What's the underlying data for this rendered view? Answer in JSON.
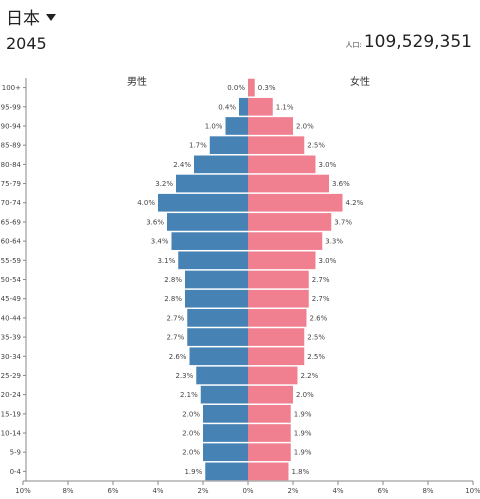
{
  "header": {
    "country": "日本",
    "year": "2045",
    "population_label": "人口:",
    "population_value": "109,529,351"
  },
  "chart_data": {
    "type": "bar",
    "title": "",
    "xlabel": "",
    "ylabel": "",
    "categories": [
      "100+",
      "95-99",
      "90-94",
      "85-89",
      "80-84",
      "75-79",
      "70-74",
      "65-69",
      "60-64",
      "55-59",
      "50-54",
      "45-49",
      "40-44",
      "35-39",
      "30-34",
      "25-29",
      "20-24",
      "15-19",
      "10-14",
      "5-9",
      "0-4"
    ],
    "series": [
      {
        "name": "男性",
        "color": "#4682b4",
        "values": [
          0.0,
          0.4,
          1.0,
          1.7,
          2.4,
          3.2,
          4.0,
          3.6,
          3.4,
          3.1,
          2.8,
          2.8,
          2.7,
          2.7,
          2.6,
          2.3,
          2.1,
          2.0,
          2.0,
          2.0,
          1.9
        ],
        "labels": [
          "0.0%",
          "0.4%",
          "1.0%",
          "1.7%",
          "2.4%",
          "3.2%",
          "4.0%",
          "3.6%",
          "3.4%",
          "3.1%",
          "2.8%",
          "2.8%",
          "2.7%",
          "2.7%",
          "2.6%",
          "2.3%",
          "2.1%",
          "2.0%",
          "2.0%",
          "2.0%",
          "1.9%"
        ]
      },
      {
        "name": "女性",
        "color": "#f08090",
        "values": [
          0.3,
          1.1,
          2.0,
          2.5,
          3.0,
          3.6,
          4.2,
          3.7,
          3.3,
          3.0,
          2.7,
          2.7,
          2.6,
          2.5,
          2.5,
          2.2,
          2.0,
          1.9,
          1.9,
          1.9,
          1.8
        ],
        "labels": [
          "0.3%",
          "1.1%",
          "2.0%",
          "2.5%",
          "3.0%",
          "3.6%",
          "4.2%",
          "3.7%",
          "3.3%",
          "3.0%",
          "2.7%",
          "2.7%",
          "2.6%",
          "2.5%",
          "2.5%",
          "2.2%",
          "2.0%",
          "1.9%",
          "1.9%",
          "1.9%",
          "1.8%"
        ]
      }
    ],
    "xlim": [
      -10,
      10
    ],
    "x_ticks": [
      -10,
      -8,
      -6,
      -4,
      -2,
      0,
      2,
      4,
      6,
      8,
      10
    ],
    "x_tick_labels": [
      "10%",
      "8%",
      "6%",
      "4%",
      "2%",
      "0%",
      "2%",
      "4%",
      "6%",
      "8%",
      "10%"
    ],
    "grid": false,
    "legend": "top"
  }
}
